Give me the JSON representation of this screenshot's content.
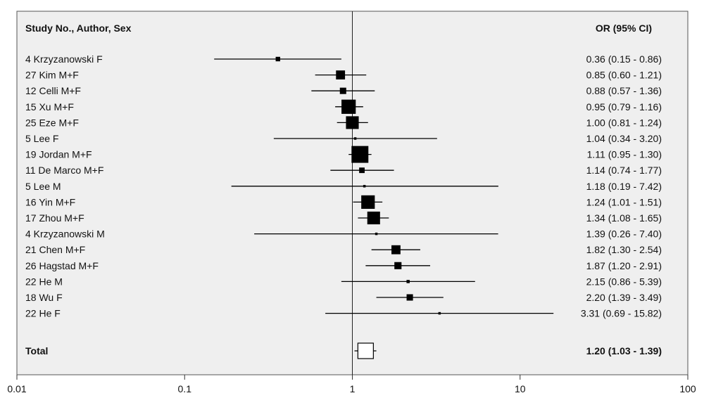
{
  "chart_data": {
    "type": "forest",
    "x_scale": "log",
    "xlim": [
      0.01,
      100
    ],
    "x_ticks": [
      "0.01",
      "0.1",
      "1",
      "10",
      "100"
    ],
    "reference_line": 1,
    "header": {
      "study": "Study No., Author, Sex",
      "or": "OR  (95% CI)"
    },
    "studies": [
      {
        "label": "4 Krzyzanowski  F",
        "or": 0.36,
        "lo": 0.15,
        "hi": 0.86,
        "ci_text": "0.36 (0.15 - 0.86)",
        "weight": 1
      },
      {
        "label": "27 Kim M+F",
        "or": 0.85,
        "lo": 0.6,
        "hi": 1.21,
        "ci_text": "0.85 (0.60 - 1.21)",
        "weight": 4
      },
      {
        "label": "12 Celli M+F",
        "or": 0.88,
        "lo": 0.57,
        "hi": 1.36,
        "ci_text": "0.88 (0.57 - 1.36)",
        "weight": 2
      },
      {
        "label": "15 Xu M+F",
        "or": 0.95,
        "lo": 0.79,
        "hi": 1.16,
        "ci_text": "0.95 (0.79 - 1.16)",
        "weight": 10
      },
      {
        "label": "25 Eze M+F",
        "or": 1.0,
        "lo": 0.81,
        "hi": 1.24,
        "ci_text": "1.00 (0.81 - 1.24)",
        "weight": 8
      },
      {
        "label": "5 Lee F",
        "or": 1.04,
        "lo": 0.34,
        "hi": 3.2,
        "ci_text": "1.04 (0.34 - 3.20)",
        "weight": 0.3
      },
      {
        "label": "19 Jordan M+F",
        "or": 1.11,
        "lo": 0.95,
        "hi": 1.3,
        "ci_text": "1.11 (0.95 - 1.30)",
        "weight": 14
      },
      {
        "label": "11 De Marco M+F",
        "or": 1.14,
        "lo": 0.74,
        "hi": 1.77,
        "ci_text": "1.14 (0.74 - 1.77)",
        "weight": 1.5
      },
      {
        "label": "5 Lee M",
        "or": 1.18,
        "lo": 0.19,
        "hi": 7.42,
        "ci_text": "1.18 (0.19 - 7.42)",
        "weight": 0.3
      },
      {
        "label": "16 Yin M+F",
        "or": 1.24,
        "lo": 1.01,
        "hi": 1.51,
        "ci_text": "1.24 (1.01 - 1.51)",
        "weight": 9
      },
      {
        "label": "17 Zhou M+F",
        "or": 1.34,
        "lo": 1.08,
        "hi": 1.65,
        "ci_text": "1.34 (1.08 - 1.65)",
        "weight": 8
      },
      {
        "label": "4 Krzyzanowski  M",
        "or": 1.39,
        "lo": 0.26,
        "hi": 7.4,
        "ci_text": "1.39 (0.26 - 7.40)",
        "weight": 0.3
      },
      {
        "label": "21 Chen M+F",
        "or": 1.82,
        "lo": 1.3,
        "hi": 2.54,
        "ci_text": "1.82 (1.30 - 2.54)",
        "weight": 4
      },
      {
        "label": "26 Hagstad M+F",
        "or": 1.87,
        "lo": 1.2,
        "hi": 2.91,
        "ci_text": "1.87 (1.20 - 2.91)",
        "weight": 2.5
      },
      {
        "label": "22 He M",
        "or": 2.15,
        "lo": 0.86,
        "hi": 5.39,
        "ci_text": "2.15 (0.86 - 5.39)",
        "weight": 0.5
      },
      {
        "label": "18 Wu F",
        "or": 2.2,
        "lo": 1.39,
        "hi": 3.49,
        "ci_text": "2.20 (1.39 - 3.49)",
        "weight": 2
      },
      {
        "label": "22 He F",
        "or": 3.31,
        "lo": 0.69,
        "hi": 15.82,
        "ci_text": "3.31 (0.69 - 15.82)",
        "weight": 0.3
      }
    ],
    "total": {
      "label": "Total",
      "or": 1.2,
      "lo": 1.03,
      "hi": 1.39,
      "ci_text": "1.20 (1.03 - 1.39)"
    },
    "colors": {
      "panel_background": "#efefef",
      "marker": "#000000",
      "total_marker_fill": "#ffffff"
    }
  }
}
